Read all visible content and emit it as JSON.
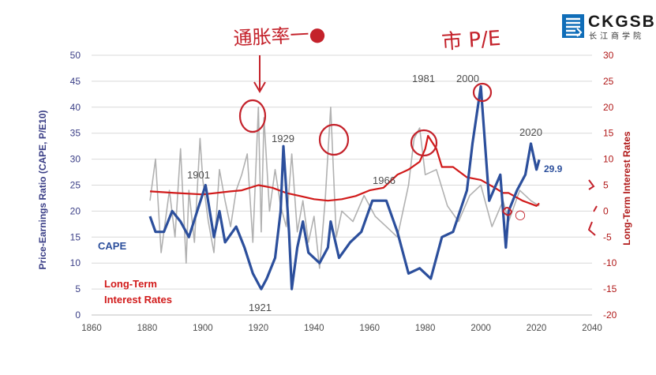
{
  "logo": {
    "name": "CKGSB",
    "subtitle": "长江商学院"
  },
  "annotations": {
    "handwritten_left": "通胀率一●",
    "handwritten_right": "市 P/E",
    "handwritten_small": "○"
  },
  "colors": {
    "cape": "#2c4f9c",
    "interest": "#d11a1a",
    "pe": "#a9a9a9",
    "axis_left": "#3a3e86",
    "axis_right": "#b01818",
    "ink": "#c4222b",
    "grid": "#d9d9d9",
    "labels": "#4d4d4d"
  },
  "chart_data": {
    "type": "line",
    "title": "",
    "xlabel": "",
    "ylabel": "Price-Earnings Ratio (CAPE, P/E10)",
    "y2label": "Long-Term Interest Rates",
    "xlim": [
      1860,
      2040
    ],
    "ylim": [
      0,
      50
    ],
    "y2lim": [
      -20,
      30
    ],
    "x_ticks": [
      "1860",
      "1880",
      "1900",
      "1920",
      "1940",
      "1960",
      "1980",
      "2000",
      "2020",
      "2040"
    ],
    "y_ticks": [
      "0",
      "5",
      "10",
      "15",
      "20",
      "25",
      "30",
      "35",
      "40",
      "45",
      "50"
    ],
    "y2_ticks": [
      "-20",
      "-15",
      "-10",
      "-5",
      "0",
      "5",
      "10",
      "15",
      "20",
      "25",
      "30"
    ],
    "grid": "horizontal",
    "series": [
      {
        "name": "CAPE",
        "axis": "left",
        "x": [
          1881,
          1883,
          1886,
          1889,
          1892,
          1895,
          1898,
          1901,
          1904,
          1906,
          1908,
          1912,
          1915,
          1918,
          1920,
          1921,
          1923,
          1926,
          1928,
          1929,
          1931,
          1932,
          1934,
          1936,
          1938,
          1942,
          1945,
          1946,
          1949,
          1953,
          1957,
          1961,
          1966,
          1970,
          1974,
          1978,
          1982,
          1986,
          1990,
          1995,
          1997,
          2000,
          2003,
          2007,
          2009,
          2010,
          2013,
          2016,
          2018,
          2020,
          2021
        ],
        "y": [
          19,
          16,
          16,
          20,
          18,
          15,
          20,
          25,
          15,
          20,
          14,
          17,
          13,
          8,
          6,
          5,
          7,
          11,
          20,
          32.5,
          16,
          5,
          13,
          18,
          12,
          10,
          13,
          18,
          11,
          14,
          16,
          22,
          22,
          16,
          8,
          9,
          7,
          15,
          16,
          24,
          33,
          44,
          22,
          27,
          13,
          20,
          24,
          27,
          33,
          28,
          29.9
        ]
      },
      {
        "name": "Long-Term Interest Rates",
        "axis": "right",
        "x": [
          1881,
          1890,
          1900,
          1910,
          1914,
          1920,
          1925,
          1930,
          1935,
          1940,
          1945,
          1950,
          1955,
          1960,
          1965,
          1970,
          1974,
          1978,
          1980,
          1981,
          1984,
          1986,
          1990,
          1995,
          2000,
          2005,
          2008,
          2010,
          2015,
          2020,
          2021
        ],
        "y": [
          3.8,
          3.5,
          3.2,
          3.8,
          4.0,
          5.0,
          4.5,
          3.5,
          2.9,
          2.3,
          2.0,
          2.3,
          2.9,
          4.0,
          4.5,
          7.0,
          8.0,
          9.5,
          12.0,
          14.5,
          12.0,
          8.5,
          8.5,
          6.5,
          6.0,
          4.5,
          3.5,
          3.5,
          2.0,
          1.0,
          1.5
        ]
      },
      {
        "name": "",
        "axis": "left",
        "x": [
          1881,
          1883,
          1885,
          1888,
          1890,
          1892,
          1894,
          1895,
          1897,
          1899,
          1900,
          1902,
          1904,
          1906,
          1908,
          1910,
          1912,
          1914,
          1916,
          1918,
          1920,
          1921,
          1922,
          1924,
          1926,
          1928,
          1930,
          1932,
          1934,
          1936,
          1938,
          1940,
          1942,
          1944,
          1946,
          1948,
          1950,
          1954,
          1958,
          1962,
          1966,
          1970,
          1974,
          1976,
          1978,
          1980,
          1984,
          1988,
          1992,
          1996,
          2000,
          2004,
          2008,
          2010,
          2014,
          2018,
          2021
        ],
        "y": [
          22,
          30,
          12,
          24,
          15,
          32,
          10,
          24,
          14,
          34,
          26,
          18,
          12,
          28,
          22,
          17,
          24,
          27,
          31,
          14,
          40,
          16,
          38,
          20,
          28,
          21,
          17,
          31,
          16,
          22,
          14,
          19,
          9,
          22,
          40,
          15,
          20,
          18,
          23,
          19,
          17,
          15,
          25,
          34,
          36,
          27,
          28,
          21,
          18,
          23,
          25,
          17,
          22,
          18,
          24,
          22,
          21
        ]
      }
    ],
    "labels": [
      {
        "text": "CAPE",
        "color": "cape"
      },
      {
        "text": "Long-Term",
        "color": "interest"
      },
      {
        "text": "Interest Rates",
        "color": "interest"
      },
      {
        "text": "1901",
        "color": "labels"
      },
      {
        "text": "1921",
        "color": "labels"
      },
      {
        "text": "1929",
        "color": "labels"
      },
      {
        "text": "1966",
        "color": "labels"
      },
      {
        "text": "1981",
        "color": "labels"
      },
      {
        "text": "2000",
        "color": "labels"
      },
      {
        "text": "2020",
        "color": "labels"
      },
      {
        "text": "29.9",
        "color": "cape"
      }
    ]
  }
}
